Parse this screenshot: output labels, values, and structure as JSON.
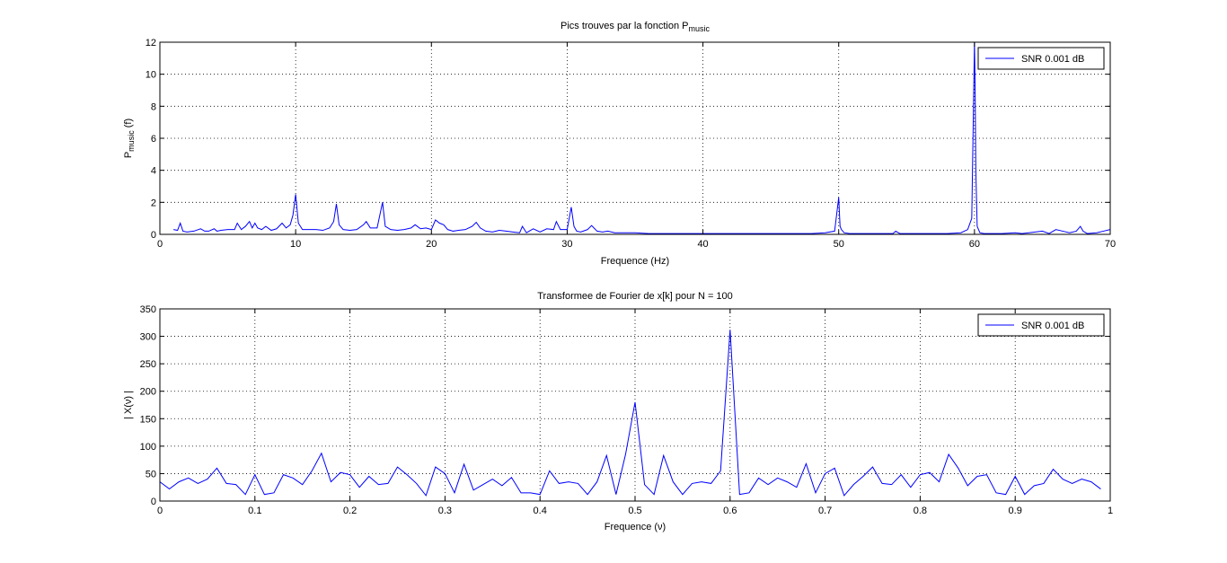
{
  "chart_data": [
    {
      "type": "line",
      "title": "Pics trouves par la fonction P",
      "title_subscript": "music",
      "xlabel": "Frequence (Hz)",
      "ylabel_main": "P",
      "ylabel_subscript": "music",
      "ylabel_suffix": " (f)",
      "xlim": [
        0,
        70
      ],
      "ylim": [
        0,
        12
      ],
      "xticks": [
        0,
        10,
        20,
        30,
        40,
        50,
        60,
        70
      ],
      "yticks": [
        0,
        2,
        4,
        6,
        8,
        10,
        12
      ],
      "xtick_labels": [
        "0",
        "10",
        "20",
        "30",
        "40",
        "50",
        "60",
        "70"
      ],
      "ytick_labels": [
        "0",
        "2",
        "4",
        "6",
        "8",
        "10",
        "12"
      ],
      "grid": true,
      "legend_position": "top-right",
      "legend_entries": [
        "SNR 0.001 dB"
      ],
      "series": [
        {
          "name": "SNR 0.001 dB",
          "color": "#0000ff",
          "x": [
            1,
            1.3,
            1.5,
            1.7,
            2,
            2.5,
            3,
            3.3,
            3.6,
            4,
            4.2,
            4.5,
            5,
            5.5,
            5.7,
            6,
            6.3,
            6.6,
            6.8,
            7,
            7.2,
            7.5,
            7.8,
            8.2,
            8.6,
            9,
            9.3,
            9.6,
            9.8,
            10,
            10.2,
            10.5,
            11,
            11.5,
            12,
            12.5,
            12.8,
            13,
            13.2,
            13.5,
            14,
            14.5,
            15,
            15.2,
            15.5,
            16,
            16.2,
            16.4,
            16.6,
            17,
            17.5,
            18,
            18.5,
            18.8,
            19.2,
            19.6,
            20,
            20.3,
            20.6,
            20.9,
            21.2,
            21.6,
            22,
            22.5,
            23,
            23.3,
            23.6,
            24,
            24.5,
            25,
            25.5,
            26,
            26.5,
            26.7,
            27,
            27.5,
            28,
            28.5,
            29,
            29.2,
            29.5,
            30,
            30.3,
            30.5,
            30.7,
            31,
            31.5,
            31.8,
            32.2,
            32.6,
            33,
            33.5,
            34,
            35,
            36,
            37,
            38,
            39,
            40,
            41,
            42,
            43,
            44,
            45,
            46,
            47,
            48,
            49,
            49.7,
            50,
            50.1,
            50.2,
            50.4,
            50.8,
            51,
            52,
            53,
            54,
            54.2,
            54.5,
            55,
            56,
            57,
            58,
            59,
            59.5,
            59.8,
            59.9,
            60,
            60.05,
            60.1,
            60.2,
            60.4,
            60.7,
            61,
            62,
            63,
            63.5,
            64,
            65,
            65.5,
            66,
            66.5,
            67,
            67.5,
            67.8,
            68,
            68.3,
            69,
            69.5,
            70
          ],
          "y": [
            0.3,
            0.25,
            0.7,
            0.2,
            0.15,
            0.2,
            0.35,
            0.2,
            0.2,
            0.35,
            0.2,
            0.25,
            0.3,
            0.3,
            0.7,
            0.3,
            0.5,
            0.8,
            0.4,
            0.7,
            0.4,
            0.3,
            0.5,
            0.25,
            0.35,
            0.7,
            0.4,
            0.6,
            1.2,
            2.5,
            0.7,
            0.3,
            0.3,
            0.3,
            0.25,
            0.4,
            0.8,
            1.9,
            0.6,
            0.3,
            0.25,
            0.3,
            0.6,
            0.8,
            0.4,
            0.4,
            1.2,
            2.0,
            0.5,
            0.3,
            0.25,
            0.3,
            0.4,
            0.6,
            0.35,
            0.4,
            0.3,
            0.9,
            0.7,
            0.6,
            0.3,
            0.2,
            0.25,
            0.3,
            0.5,
            0.75,
            0.4,
            0.2,
            0.15,
            0.25,
            0.2,
            0.15,
            0.1,
            0.5,
            0.1,
            0.35,
            0.15,
            0.35,
            0.3,
            0.8,
            0.3,
            0.3,
            1.7,
            0.5,
            0.2,
            0.15,
            0.3,
            0.55,
            0.2,
            0.15,
            0.2,
            0.1,
            0.1,
            0.1,
            0.05,
            0.05,
            0.05,
            0.05,
            0.05,
            0.05,
            0.05,
            0.05,
            0.05,
            0.05,
            0.05,
            0.05,
            0.05,
            0.1,
            0.2,
            2.3,
            0.5,
            0.3,
            0.1,
            0.05,
            0.05,
            0.05,
            0.05,
            0.05,
            0.2,
            0.05,
            0.05,
            0.05,
            0.05,
            0.05,
            0.1,
            0.3,
            1.0,
            6.5,
            12,
            9.0,
            4.0,
            0.5,
            0.1,
            0.05,
            0.05,
            0.05,
            0.1,
            0.05,
            0.1,
            0.2,
            0.05,
            0.3,
            0.2,
            0.1,
            0.2,
            0.5,
            0.2,
            0.05,
            0.1,
            0.2,
            0.3
          ]
        }
      ]
    },
    {
      "type": "line",
      "title": "Transformee de Fourier de x[k] pour N = 100",
      "xlabel": "Frequence (ν)",
      "ylabel": "| X(ν) |",
      "xlim": [
        0,
        1
      ],
      "ylim": [
        0,
        350
      ],
      "xticks": [
        0,
        0.1,
        0.2,
        0.3,
        0.4,
        0.5,
        0.6,
        0.7,
        0.8,
        0.9,
        1
      ],
      "yticks": [
        0,
        50,
        100,
        150,
        200,
        250,
        300,
        350
      ],
      "xtick_labels": [
        "0",
        "0.1",
        "0.2",
        "0.3",
        "0.4",
        "0.5",
        "0.6",
        "0.7",
        "0.8",
        "0.9",
        "1"
      ],
      "ytick_labels": [
        "0",
        "50",
        "100",
        "150",
        "200",
        "250",
        "300",
        "350"
      ],
      "grid": true,
      "legend_position": "top-right",
      "legend_entries": [
        "SNR 0.001 dB"
      ],
      "series": [
        {
          "name": "SNR 0.001 dB",
          "color": "#0000ff",
          "x": [
            0,
            0.01,
            0.02,
            0.03,
            0.04,
            0.05,
            0.06,
            0.07,
            0.08,
            0.09,
            0.1,
            0.11,
            0.12,
            0.13,
            0.14,
            0.15,
            0.16,
            0.17,
            0.18,
            0.19,
            0.2,
            0.21,
            0.22,
            0.23,
            0.24,
            0.25,
            0.26,
            0.27,
            0.28,
            0.29,
            0.3,
            0.31,
            0.32,
            0.33,
            0.34,
            0.35,
            0.36,
            0.37,
            0.38,
            0.39,
            0.4,
            0.41,
            0.42,
            0.43,
            0.44,
            0.45,
            0.46,
            0.47,
            0.48,
            0.49,
            0.5,
            0.51,
            0.52,
            0.53,
            0.54,
            0.55,
            0.56,
            0.57,
            0.58,
            0.59,
            0.6,
            0.61,
            0.62,
            0.63,
            0.64,
            0.65,
            0.66,
            0.67,
            0.68,
            0.69,
            0.7,
            0.71,
            0.72,
            0.73,
            0.74,
            0.75,
            0.76,
            0.77,
            0.78,
            0.79,
            0.8,
            0.81,
            0.82,
            0.83,
            0.84,
            0.85,
            0.86,
            0.87,
            0.88,
            0.89,
            0.9,
            0.91,
            0.92,
            0.93,
            0.94,
            0.95,
            0.96,
            0.97,
            0.98,
            0.99
          ],
          "y": [
            35,
            22,
            35,
            42,
            32,
            40,
            60,
            32,
            30,
            12,
            48,
            12,
            15,
            48,
            42,
            30,
            55,
            87,
            35,
            52,
            48,
            25,
            45,
            30,
            32,
            62,
            48,
            32,
            10,
            62,
            50,
            15,
            67,
            20,
            30,
            40,
            28,
            43,
            15,
            15,
            12,
            55,
            32,
            35,
            32,
            12,
            35,
            83,
            12,
            85,
            180,
            30,
            12,
            83,
            35,
            12,
            32,
            35,
            32,
            55,
            312,
            12,
            15,
            42,
            30,
            42,
            35,
            25,
            68,
            15,
            50,
            60,
            10,
            30,
            45,
            62,
            32,
            30,
            48,
            25,
            48,
            52,
            35,
            85,
            60,
            28,
            45,
            48,
            15,
            12,
            45,
            12,
            28,
            32,
            58,
            40,
            32,
            40,
            35,
            22
          ]
        }
      ]
    }
  ]
}
